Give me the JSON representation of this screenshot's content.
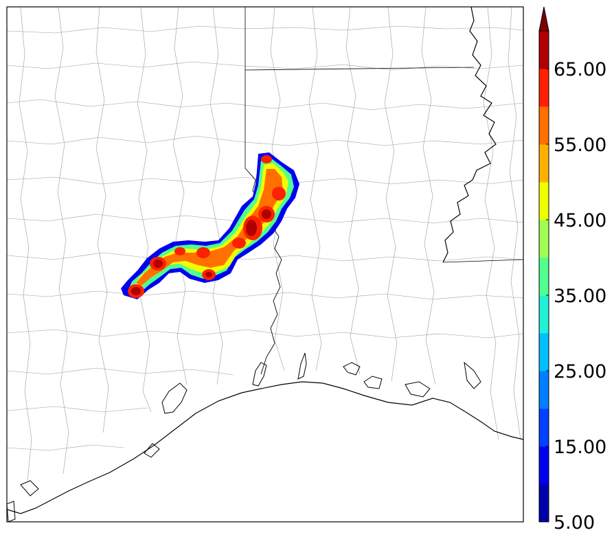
{
  "map": {
    "features": [
      "county-boundaries",
      "state-boundaries",
      "coastline",
      "river-mississippi",
      "reflectivity-swath"
    ]
  },
  "colorbar": {
    "extend": "max",
    "min": 5,
    "max": 70,
    "step": 5,
    "tick_labels": [
      "5.00",
      "15.00",
      "25.00",
      "35.00",
      "45.00",
      "55.00",
      "65.00"
    ],
    "colors": [
      "#0000a8",
      "#0000f0",
      "#0040ff",
      "#0080ff",
      "#00c0ff",
      "#20f0d8",
      "#50ff90",
      "#a0ff50",
      "#f0ff00",
      "#ffb000",
      "#ff7000",
      "#ff2000",
      "#b00000",
      "#800000"
    ]
  }
}
